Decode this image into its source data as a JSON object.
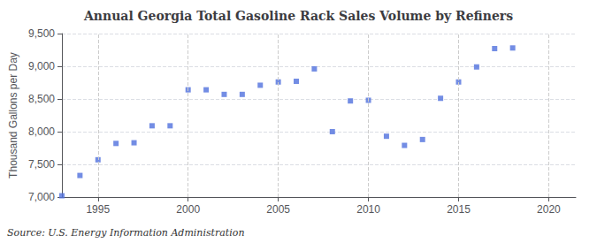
{
  "chart_data": {
    "type": "scatter",
    "title": "Annual Georgia Total Gasoline Rack Sales Volume by Refiners",
    "ylabel": "Thousand Gallons per Day",
    "source": "Source: U.S. Energy Information Administration",
    "x": [
      1993,
      1994,
      1995,
      1996,
      1997,
      1998,
      1999,
      2000,
      2001,
      2002,
      2003,
      2004,
      2005,
      2006,
      2007,
      2008,
      2009,
      2010,
      2011,
      2012,
      2013,
      2014,
      2015,
      2016,
      2017,
      2018
    ],
    "values": [
      7020,
      7330,
      7570,
      7820,
      7830,
      8090,
      8090,
      8640,
      8640,
      8570,
      8570,
      8710,
      8760,
      8770,
      8960,
      8000,
      8470,
      8480,
      7930,
      7790,
      7880,
      8510,
      8760,
      8990,
      9270,
      9280
    ],
    "marker": "square",
    "xlim": [
      1993.0,
      2021.5
    ],
    "xticks": [
      1995,
      2000,
      2005,
      2010,
      2015,
      2020
    ],
    "ylim": [
      7000,
      9500
    ],
    "yticks": [
      {
        "value": 7000,
        "label": "7,000"
      },
      {
        "value": 7500,
        "label": "7,500"
      },
      {
        "value": 8000,
        "label": "8,000"
      },
      {
        "value": 8500,
        "label": "8,500"
      },
      {
        "value": 9000,
        "label": "9,000"
      },
      {
        "value": 9500,
        "label": "9,500"
      }
    ],
    "grid": true
  }
}
